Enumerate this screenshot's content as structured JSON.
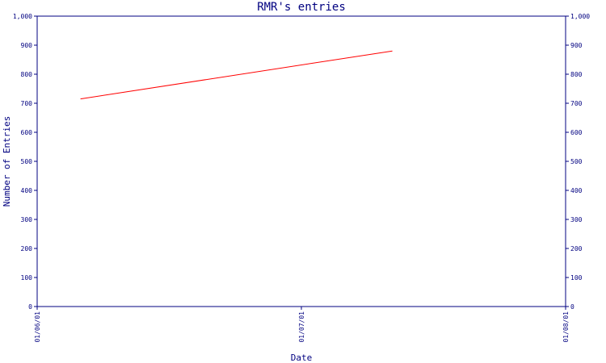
{
  "chart_data": {
    "type": "line",
    "title": "RMR's entries",
    "xlabel": "Date",
    "ylabel": "Number of Entries",
    "x_ticks": [
      "01/06/01",
      "01/07/01",
      "01/08/01"
    ],
    "y_ticks": [
      "0",
      "100",
      "200",
      "300",
      "400",
      "500",
      "600",
      "700",
      "800",
      "900",
      "1,000"
    ],
    "y_ticks_right": [
      "0",
      "100",
      "200",
      "300",
      "400",
      "500",
      "600",
      "700",
      "800",
      "900",
      "1,000"
    ],
    "ylim": [
      0,
      1000
    ],
    "xlim": [
      "2001-06-01",
      "2001-08-01"
    ],
    "grid": false,
    "colors": {
      "series": "#ff0000",
      "axis": "#000080"
    },
    "series": [
      {
        "x": [
          "2001-06-06",
          "2001-07-12"
        ],
        "values": [
          715,
          880
        ]
      }
    ]
  }
}
